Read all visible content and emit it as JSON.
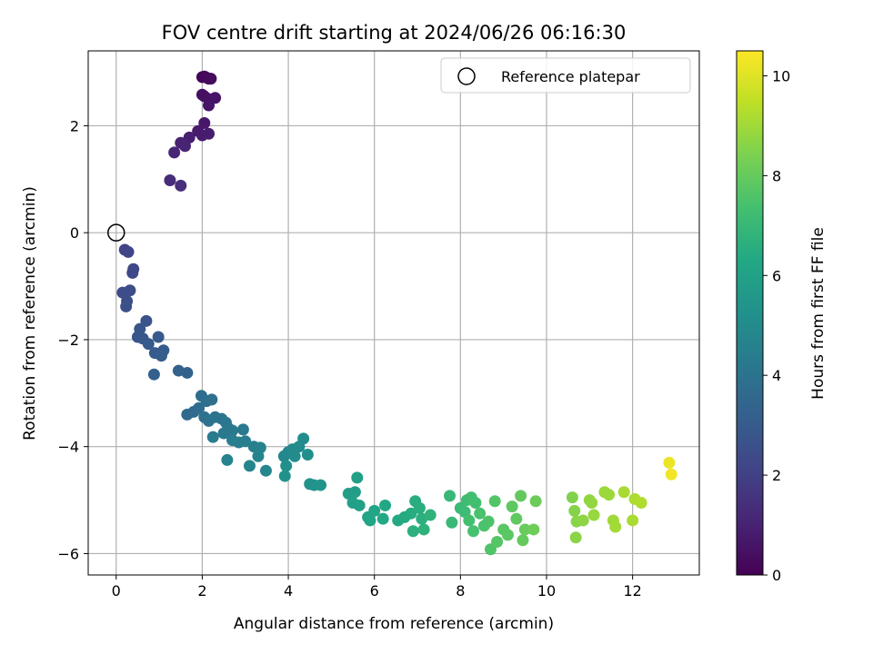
{
  "chart_data": {
    "type": "scatter",
    "title": "FOV centre drift starting at 2024/06/26 06:16:30",
    "xlabel": "Angular distance from reference (arcmin)",
    "ylabel": "Rotation from reference (arcmin)",
    "xlim": [
      -0.65,
      13.55
    ],
    "ylim": [
      -6.4,
      3.4
    ],
    "xticks": [
      0,
      2,
      4,
      6,
      8,
      10,
      12
    ],
    "yticks": [
      -6,
      -4,
      -2,
      0,
      2
    ],
    "grid": true,
    "legend": {
      "placement": "top-right",
      "entries": [
        {
          "label": "Reference platepar",
          "marker": "hollow-circle"
        }
      ]
    },
    "reference_point": {
      "x": 0,
      "y": 0
    },
    "colorbar": {
      "label": "Hours from first FF file",
      "colormap": "viridis",
      "range": [
        0,
        10.5
      ],
      "ticks": [
        0,
        2,
        4,
        6,
        8,
        10
      ]
    },
    "series": [
      {
        "color_by": "hours",
        "points": [
          {
            "x": 2.0,
            "y": 2.91,
            "c": 0.1
          },
          {
            "x": 2.05,
            "y": 2.92,
            "c": 0.15
          },
          {
            "x": 2.1,
            "y": 2.9,
            "c": 0.2
          },
          {
            "x": 2.15,
            "y": 2.88,
            "c": 0.25
          },
          {
            "x": 2.2,
            "y": 2.88,
            "c": 0.3
          },
          {
            "x": 2.0,
            "y": 2.58,
            "c": 0.4
          },
          {
            "x": 2.05,
            "y": 2.55,
            "c": 0.45
          },
          {
            "x": 2.15,
            "y": 2.5,
            "c": 0.5
          },
          {
            "x": 2.3,
            "y": 2.52,
            "c": 0.55
          },
          {
            "x": 2.15,
            "y": 2.38,
            "c": 0.6
          },
          {
            "x": 2.05,
            "y": 2.05,
            "c": 0.7
          },
          {
            "x": 1.9,
            "y": 1.9,
            "c": 0.75
          },
          {
            "x": 2.0,
            "y": 1.82,
            "c": 0.8
          },
          {
            "x": 2.15,
            "y": 1.85,
            "c": 0.85
          },
          {
            "x": 1.7,
            "y": 1.78,
            "c": 0.9
          },
          {
            "x": 1.5,
            "y": 1.68,
            "c": 1.0
          },
          {
            "x": 1.6,
            "y": 1.62,
            "c": 1.05
          },
          {
            "x": 1.35,
            "y": 1.5,
            "c": 1.1
          },
          {
            "x": 1.25,
            "y": 0.98,
            "c": 1.3
          },
          {
            "x": 1.5,
            "y": 0.88,
            "c": 1.4
          },
          {
            "x": 0.2,
            "y": -0.32,
            "c": 2.1
          },
          {
            "x": 0.28,
            "y": -0.36,
            "c": 2.15
          },
          {
            "x": 0.4,
            "y": -0.68,
            "c": 2.2
          },
          {
            "x": 0.38,
            "y": -0.75,
            "c": 2.25
          },
          {
            "x": 0.15,
            "y": -1.12,
            "c": 2.4
          },
          {
            "x": 0.32,
            "y": -1.08,
            "c": 2.45
          },
          {
            "x": 0.25,
            "y": -1.28,
            "c": 2.5
          },
          {
            "x": 0.23,
            "y": -1.38,
            "c": 2.55
          },
          {
            "x": 0.7,
            "y": -1.65,
            "c": 2.7
          },
          {
            "x": 0.55,
            "y": -1.8,
            "c": 2.75
          },
          {
            "x": 0.5,
            "y": -1.95,
            "c": 2.8
          },
          {
            "x": 0.62,
            "y": -1.98,
            "c": 2.85
          },
          {
            "x": 0.98,
            "y": -1.95,
            "c": 2.9
          },
          {
            "x": 0.75,
            "y": -2.08,
            "c": 2.95
          },
          {
            "x": 0.9,
            "y": -2.25,
            "c": 3.0
          },
          {
            "x": 1.1,
            "y": -2.2,
            "c": 3.05
          },
          {
            "x": 1.05,
            "y": -2.3,
            "c": 3.1
          },
          {
            "x": 0.88,
            "y": -2.65,
            "c": 3.2
          },
          {
            "x": 1.45,
            "y": -2.58,
            "c": 3.25
          },
          {
            "x": 1.65,
            "y": -2.62,
            "c": 3.3
          },
          {
            "x": 1.65,
            "y": -3.4,
            "c": 3.6
          },
          {
            "x": 1.8,
            "y": -3.35,
            "c": 3.65
          },
          {
            "x": 1.92,
            "y": -3.28,
            "c": 3.7
          },
          {
            "x": 1.98,
            "y": -3.05,
            "c": 3.75
          },
          {
            "x": 2.1,
            "y": -3.15,
            "c": 3.8
          },
          {
            "x": 2.22,
            "y": -3.12,
            "c": 3.85
          },
          {
            "x": 2.05,
            "y": -3.45,
            "c": 3.9
          },
          {
            "x": 2.15,
            "y": -3.52,
            "c": 3.95
          },
          {
            "x": 2.3,
            "y": -3.45,
            "c": 4.0
          },
          {
            "x": 2.45,
            "y": -3.48,
            "c": 4.05
          },
          {
            "x": 2.55,
            "y": -3.55,
            "c": 4.1
          },
          {
            "x": 2.6,
            "y": -3.65,
            "c": 4.15
          },
          {
            "x": 2.5,
            "y": -3.75,
            "c": 4.2
          },
          {
            "x": 2.7,
            "y": -3.7,
            "c": 4.25
          },
          {
            "x": 2.95,
            "y": -3.68,
            "c": 4.3
          },
          {
            "x": 2.25,
            "y": -3.82,
            "c": 4.35
          },
          {
            "x": 2.7,
            "y": -3.88,
            "c": 4.4
          },
          {
            "x": 2.85,
            "y": -3.92,
            "c": 4.45
          },
          {
            "x": 3.0,
            "y": -3.9,
            "c": 4.5
          },
          {
            "x": 3.2,
            "y": -4.0,
            "c": 4.55
          },
          {
            "x": 3.35,
            "y": -4.02,
            "c": 4.6
          },
          {
            "x": 2.58,
            "y": -4.25,
            "c": 4.65
          },
          {
            "x": 3.3,
            "y": -4.18,
            "c": 4.7
          },
          {
            "x": 3.1,
            "y": -4.36,
            "c": 4.75
          },
          {
            "x": 3.48,
            "y": -4.45,
            "c": 4.8
          },
          {
            "x": 3.9,
            "y": -4.18,
            "c": 4.85
          },
          {
            "x": 4.0,
            "y": -4.1,
            "c": 4.9
          },
          {
            "x": 4.1,
            "y": -4.05,
            "c": 4.95
          },
          {
            "x": 4.25,
            "y": -4.0,
            "c": 5.0
          },
          {
            "x": 4.35,
            "y": -3.85,
            "c": 5.05
          },
          {
            "x": 4.15,
            "y": -4.18,
            "c": 5.1
          },
          {
            "x": 4.45,
            "y": -4.15,
            "c": 5.15
          },
          {
            "x": 3.95,
            "y": -4.36,
            "c": 5.2
          },
          {
            "x": 3.92,
            "y": -4.55,
            "c": 5.25
          },
          {
            "x": 4.5,
            "y": -4.7,
            "c": 5.3
          },
          {
            "x": 4.6,
            "y": -4.72,
            "c": 5.35
          },
          {
            "x": 4.75,
            "y": -4.72,
            "c": 5.4
          },
          {
            "x": 5.4,
            "y": -4.88,
            "c": 5.8
          },
          {
            "x": 5.55,
            "y": -4.85,
            "c": 5.85
          },
          {
            "x": 5.6,
            "y": -4.58,
            "c": 5.9
          },
          {
            "x": 5.5,
            "y": -5.05,
            "c": 5.95
          },
          {
            "x": 5.65,
            "y": -5.1,
            "c": 6.0
          },
          {
            "x": 5.85,
            "y": -5.32,
            "c": 6.05
          },
          {
            "x": 6.0,
            "y": -5.2,
            "c": 6.1
          },
          {
            "x": 5.9,
            "y": -5.38,
            "c": 6.15
          },
          {
            "x": 6.25,
            "y": -5.1,
            "c": 6.25
          },
          {
            "x": 6.2,
            "y": -5.35,
            "c": 6.3
          },
          {
            "x": 6.55,
            "y": -5.38,
            "c": 6.35
          },
          {
            "x": 6.7,
            "y": -5.32,
            "c": 6.4
          },
          {
            "x": 6.85,
            "y": -5.25,
            "c": 6.45
          },
          {
            "x": 6.95,
            "y": -5.02,
            "c": 6.5
          },
          {
            "x": 7.05,
            "y": -5.15,
            "c": 6.55
          },
          {
            "x": 7.1,
            "y": -5.35,
            "c": 6.6
          },
          {
            "x": 6.9,
            "y": -5.58,
            "c": 6.65
          },
          {
            "x": 7.15,
            "y": -5.55,
            "c": 6.7
          },
          {
            "x": 7.3,
            "y": -5.28,
            "c": 6.75
          },
          {
            "x": 7.75,
            "y": -4.92,
            "c": 7.0
          },
          {
            "x": 7.8,
            "y": -5.42,
            "c": 7.05
          },
          {
            "x": 8.0,
            "y": -5.15,
            "c": 7.1
          },
          {
            "x": 8.1,
            "y": -5.22,
            "c": 7.15
          },
          {
            "x": 8.15,
            "y": -5.0,
            "c": 7.2
          },
          {
            "x": 8.25,
            "y": -4.95,
            "c": 7.25
          },
          {
            "x": 8.35,
            "y": -5.05,
            "c": 7.3
          },
          {
            "x": 8.2,
            "y": -5.38,
            "c": 7.35
          },
          {
            "x": 8.3,
            "y": -5.58,
            "c": 7.4
          },
          {
            "x": 8.45,
            "y": -5.25,
            "c": 7.45
          },
          {
            "x": 8.55,
            "y": -5.48,
            "c": 7.5
          },
          {
            "x": 8.65,
            "y": -5.4,
            "c": 7.55
          },
          {
            "x": 8.7,
            "y": -5.92,
            "c": 7.6
          },
          {
            "x": 8.8,
            "y": -5.02,
            "c": 7.65
          },
          {
            "x": 8.85,
            "y": -5.78,
            "c": 7.7
          },
          {
            "x": 9.0,
            "y": -5.55,
            "c": 7.75
          },
          {
            "x": 9.1,
            "y": -5.65,
            "c": 7.8
          },
          {
            "x": 9.2,
            "y": -5.12,
            "c": 7.85
          },
          {
            "x": 9.3,
            "y": -5.35,
            "c": 7.9
          },
          {
            "x": 9.4,
            "y": -4.92,
            "c": 7.95
          },
          {
            "x": 9.45,
            "y": -5.75,
            "c": 8.0
          },
          {
            "x": 9.5,
            "y": -5.55,
            "c": 8.05
          },
          {
            "x": 9.75,
            "y": -5.02,
            "c": 8.1
          },
          {
            "x": 9.7,
            "y": -5.55,
            "c": 8.15
          },
          {
            "x": 10.6,
            "y": -4.95,
            "c": 8.5
          },
          {
            "x": 10.65,
            "y": -5.2,
            "c": 8.55
          },
          {
            "x": 10.7,
            "y": -5.4,
            "c": 8.6
          },
          {
            "x": 10.68,
            "y": -5.7,
            "c": 8.65
          },
          {
            "x": 10.85,
            "y": -5.38,
            "c": 8.7
          },
          {
            "x": 11.0,
            "y": -5.0,
            "c": 8.75
          },
          {
            "x": 11.05,
            "y": -5.05,
            "c": 8.8
          },
          {
            "x": 11.1,
            "y": -5.28,
            "c": 8.85
          },
          {
            "x": 11.35,
            "y": -4.85,
            "c": 8.9
          },
          {
            "x": 11.45,
            "y": -4.9,
            "c": 8.95
          },
          {
            "x": 11.55,
            "y": -5.38,
            "c": 9.0
          },
          {
            "x": 11.6,
            "y": -5.5,
            "c": 9.05
          },
          {
            "x": 11.8,
            "y": -4.85,
            "c": 9.1
          },
          {
            "x": 12.0,
            "y": -5.38,
            "c": 9.15
          },
          {
            "x": 12.05,
            "y": -4.98,
            "c": 9.2
          },
          {
            "x": 12.2,
            "y": -5.05,
            "c": 9.25
          },
          {
            "x": 12.85,
            "y": -4.3,
            "c": 10.2
          },
          {
            "x": 12.9,
            "y": -4.52,
            "c": 10.3
          }
        ]
      }
    ]
  }
}
